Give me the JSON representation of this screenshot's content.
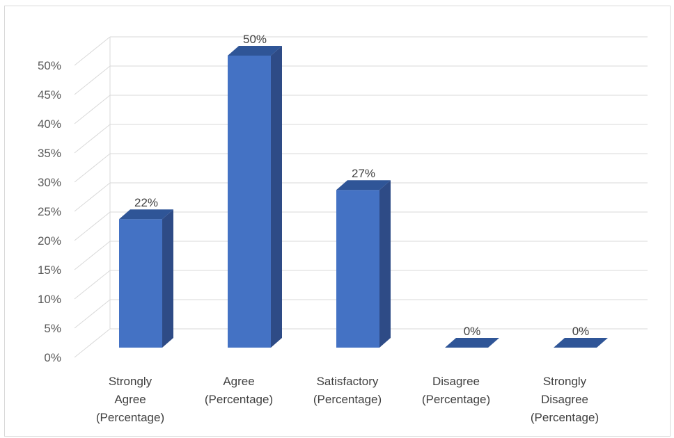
{
  "chart_data": {
    "type": "bar",
    "style": "3d-clustered-column",
    "categories": [
      [
        "Strongly",
        "Agree",
        "(Percentage)"
      ],
      [
        "Agree",
        "(Percentage)"
      ],
      [
        "Satisfactory",
        "(Percentage)"
      ],
      [
        "Disagree",
        "(Percentage)"
      ],
      [
        "Strongly",
        "Disagree",
        "(Percentage)"
      ]
    ],
    "values": [
      22,
      50,
      27,
      0,
      0
    ],
    "data_labels": [
      "22%",
      "50%",
      "27%",
      "0%",
      "0%"
    ],
    "ylim": [
      0,
      50
    ],
    "yticks": [
      0,
      5,
      10,
      15,
      20,
      25,
      30,
      35,
      40,
      45,
      50
    ],
    "ytick_labels": [
      "0%",
      "5%",
      "10%",
      "15%",
      "20%",
      "25%",
      "30%",
      "35%",
      "40%",
      "45%",
      "50%"
    ],
    "grid": true,
    "legend": "none",
    "colors": {
      "bar_front": "#4472c4",
      "bar_side": "#2e4b86",
      "bar_top": "#2f5597",
      "grid": "#d9d9d9",
      "wall_edge": "#d9d9d9"
    }
  }
}
